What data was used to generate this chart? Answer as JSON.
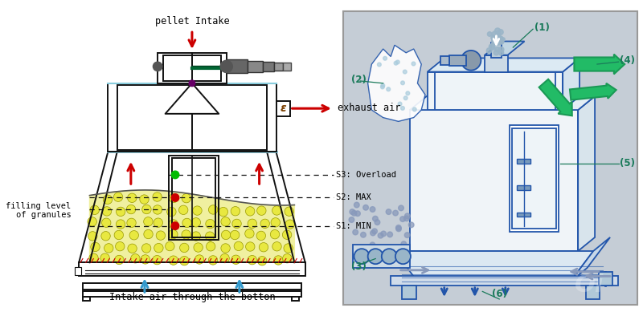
{
  "left_bg": "#ffffff",
  "right_bg": "#c5cdd6",
  "diagram_color": "#111111",
  "red_color": "#cc0000",
  "blue_arrow_color": "#3399cc",
  "granule_fill": "#f0f0a0",
  "granule_dot_fill": "#e8e840",
  "granule_dot_edge": "#999900",
  "label_color": "#1a7a5a",
  "blue_line": "#2255aa",
  "labels": {
    "pellet_intake": "pellet Intake",
    "exhaust_air": "exhaust air",
    "s3": "S3: Overload",
    "s2": "S2: MAX",
    "s1": "S1: MIN",
    "filling_level": "filling level\nof granules",
    "intake_air": "Intake air through the botton"
  },
  "right_labels": {
    "1": "(1)",
    "2": "(2)",
    "3": "(3)",
    "4": "(4)",
    "5": "(5)",
    "6": "(6)"
  }
}
